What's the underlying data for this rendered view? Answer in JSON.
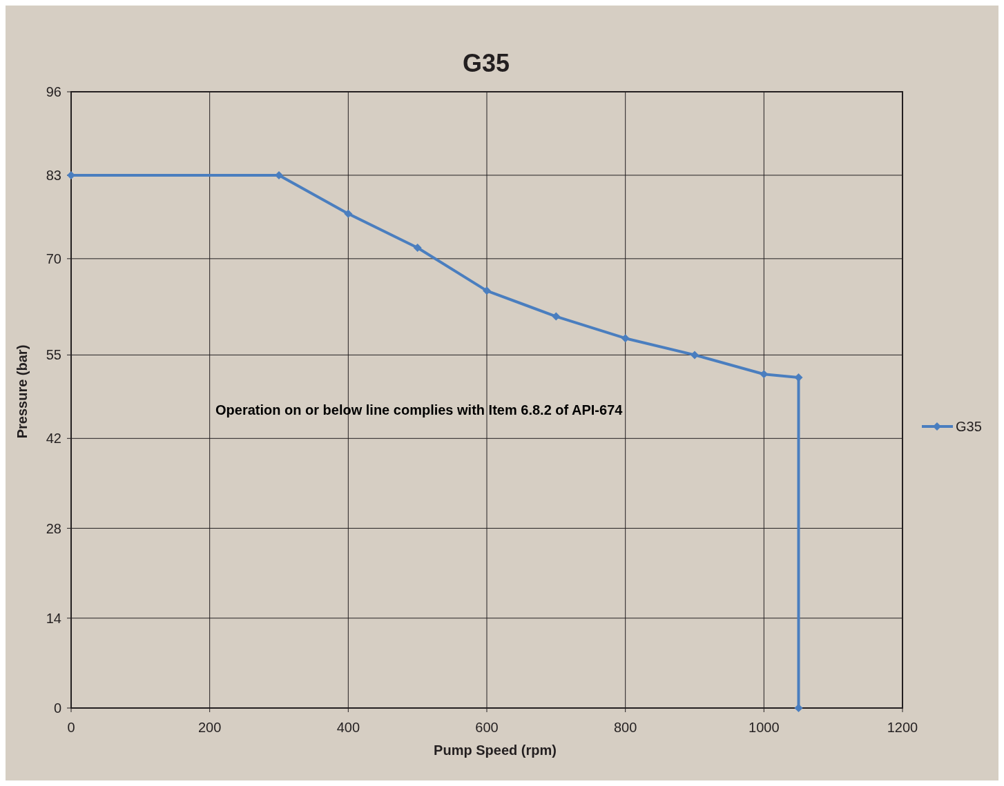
{
  "chart_data": {
    "type": "line",
    "title": "G35",
    "xlabel": "Pump Speed (rpm)",
    "ylabel": "Pressure (bar)",
    "annotations": [
      "Operation on or below line complies with Item 6.8.2 of API-674"
    ],
    "x": [
      0,
      300,
      400,
      500,
      600,
      700,
      800,
      900,
      1000,
      1050,
      1050
    ],
    "series": [
      {
        "name": "G35",
        "color": "#4a7ebf",
        "values": [
          83,
          83,
          77,
          71.7,
          65,
          61,
          57.6,
          55,
          52,
          51.5,
          0
        ]
      }
    ],
    "xlim": [
      0,
      1200
    ],
    "xticks": [
      0,
      200,
      400,
      600,
      800,
      1000,
      1200
    ],
    "ylim": [
      0,
      96
    ],
    "yticks": [
      0,
      14,
      28,
      42,
      55,
      70,
      83,
      96
    ],
    "grid": true,
    "legend": "right",
    "marker": "diamond",
    "line_style": "solid"
  }
}
